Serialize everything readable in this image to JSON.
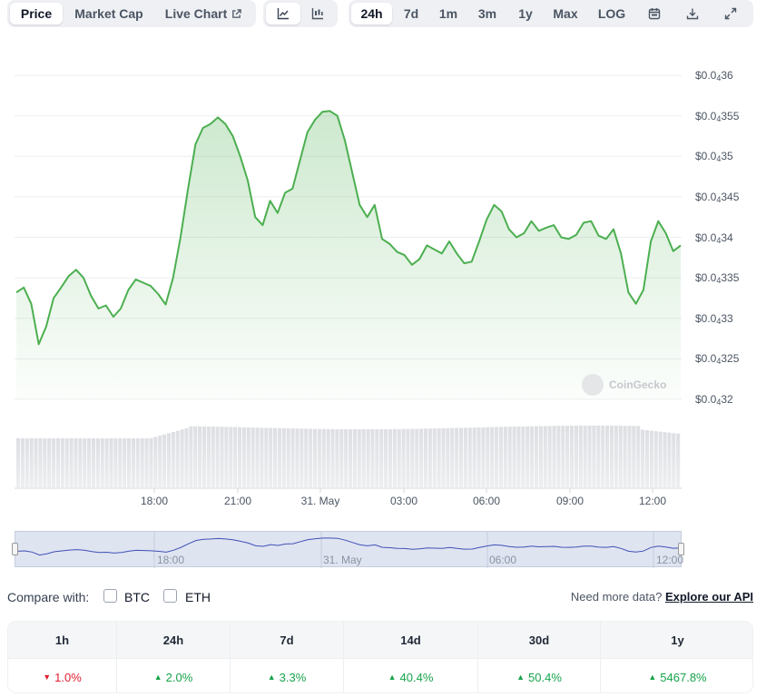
{
  "toolbar": {
    "view_tabs": [
      {
        "label": "Price",
        "active": true
      },
      {
        "label": "Market Cap",
        "active": false
      },
      {
        "label": "Live Chart",
        "active": false
      }
    ],
    "chart_type_icons": [
      "line-chart-icon",
      "candlestick-icon"
    ],
    "ranges": [
      {
        "label": "24h",
        "active": true
      },
      {
        "label": "7d",
        "active": false
      },
      {
        "label": "1m",
        "active": false
      },
      {
        "label": "3m",
        "active": false
      },
      {
        "label": "1y",
        "active": false
      },
      {
        "label": "Max",
        "active": false
      },
      {
        "label": "LOG",
        "active": false
      }
    ],
    "tool_icons": [
      "calendar-icon",
      "download-icon",
      "fullscreen-icon"
    ]
  },
  "chart": {
    "y_ticks": [
      {
        "base": "$0.0",
        "sub": "4",
        "rest": "36",
        "value": 3.6e-05
      },
      {
        "base": "$0.0",
        "sub": "4",
        "rest": "355",
        "value": 3.55e-05
      },
      {
        "base": "$0.0",
        "sub": "4",
        "rest": "35",
        "value": 3.5e-05
      },
      {
        "base": "$0.0",
        "sub": "4",
        "rest": "345",
        "value": 3.45e-05
      },
      {
        "base": "$0.0",
        "sub": "4",
        "rest": "34",
        "value": 3.4e-05
      },
      {
        "base": "$0.0",
        "sub": "4",
        "rest": "335",
        "value": 3.35e-05
      },
      {
        "base": "$0.0",
        "sub": "4",
        "rest": "33",
        "value": 3.3e-05
      },
      {
        "base": "$0.0",
        "sub": "4",
        "rest": "325",
        "value": 3.25e-05
      },
      {
        "base": "$0.0",
        "sub": "4",
        "rest": "32",
        "value": 3.2e-05
      }
    ],
    "x_ticks": [
      "18:00",
      "21:00",
      "31. May",
      "03:00",
      "06:00",
      "09:00",
      "12:00"
    ],
    "navigator_labels": [
      "18:00",
      "31. May",
      "06:00",
      "12:00"
    ],
    "watermark": "CoinGecko",
    "line_color": "#4caf50"
  },
  "chart_data": {
    "type": "line",
    "ylim": [
      3.2e-05,
      3.6e-05
    ],
    "x_ticks": [
      "18:00",
      "21:00",
      "31. May",
      "03:00",
      "06:00",
      "09:00",
      "12:00"
    ],
    "series": [
      {
        "values": [
          3.332e-05,
          3.338e-05,
          3.318e-05,
          3.268e-05,
          3.29e-05,
          3.325e-05,
          3.338e-05,
          3.352e-05,
          3.36e-05,
          3.35e-05,
          3.328e-05,
          3.312e-05,
          3.316e-05,
          3.302e-05,
          3.312e-05,
          3.335e-05,
          3.348e-05,
          3.344e-05,
          3.34e-05,
          3.33e-05,
          3.317e-05,
          3.35e-05,
          3.4e-05,
          3.46e-05,
          3.515e-05,
          3.535e-05,
          3.54e-05,
          3.548e-05,
          3.54e-05,
          3.525e-05,
          3.5e-05,
          3.47e-05,
          3.425e-05,
          3.415e-05,
          3.445e-05,
          3.43e-05,
          3.455e-05,
          3.46e-05,
          3.495e-05,
          3.53e-05,
          3.545e-05,
          3.555e-05,
          3.556e-05,
          3.55e-05,
          3.52e-05,
          3.48e-05,
          3.44e-05,
          3.425e-05,
          3.44e-05,
          3.398e-05,
          3.392e-05,
          3.382e-05,
          3.378e-05,
          3.366e-05,
          3.373e-05,
          3.39e-05,
          3.385e-05,
          3.38e-05,
          3.395e-05,
          3.38e-05,
          3.368e-05,
          3.37e-05,
          3.395e-05,
          3.422e-05,
          3.44e-05,
          3.432e-05,
          3.41e-05,
          3.4e-05,
          3.405e-05,
          3.42e-05,
          3.408e-05,
          3.412e-05,
          3.415e-05,
          3.4e-05,
          3.398e-05,
          3.403e-05,
          3.418e-05,
          3.42e-05,
          3.402e-05,
          3.398e-05,
          3.41e-05,
          3.38e-05,
          3.332e-05,
          3.318e-05,
          3.335e-05,
          3.395e-05,
          3.42e-05,
          3.405e-05,
          3.383e-05,
          3.39e-05
        ]
      }
    ]
  },
  "compare": {
    "label": "Compare with:",
    "options": [
      "BTC",
      "ETH"
    ],
    "more_text": "Need more data?",
    "more_link": "Explore our API"
  },
  "changes": {
    "headers": [
      "1h",
      "24h",
      "7d",
      "14d",
      "30d",
      "1y"
    ],
    "values": [
      {
        "text": "1.0%",
        "direction": "down"
      },
      {
        "text": "2.0%",
        "direction": "up"
      },
      {
        "text": "3.3%",
        "direction": "up"
      },
      {
        "text": "40.4%",
        "direction": "up"
      },
      {
        "text": "50.4%",
        "direction": "up"
      },
      {
        "text": "5467.8%",
        "direction": "up"
      }
    ]
  }
}
